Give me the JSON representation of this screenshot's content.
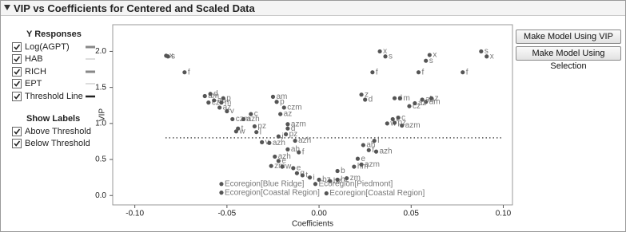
{
  "header": {
    "title": "VIP vs Coefficients for Centered and Scaled Data"
  },
  "y_responses": {
    "title": "Y Responses",
    "items": [
      "Log(AGPT)",
      "HAB",
      "RICH",
      "EPT",
      "Threshold Line"
    ]
  },
  "show_labels": {
    "title": "Show Labels",
    "items": [
      "Above Threshold",
      "Below Threshold"
    ]
  },
  "buttons": [
    "Make Model Using VIP",
    "Make Model Using Selection"
  ],
  "chart_data": {
    "type": "scatter",
    "x_label": "Coefficients",
    "y_label": "VIP",
    "xlim": [
      -0.112,
      0.105
    ],
    "ylim": [
      -0.13,
      2.37
    ],
    "xticks": [
      {
        "value": -0.1,
        "label": "-0.10"
      },
      {
        "value": -0.05,
        "label": "-0.05"
      },
      {
        "value": 0,
        "label": "0.00"
      },
      {
        "value": 0.05,
        "label": "0.05"
      },
      {
        "value": 0.1,
        "label": "0.10"
      }
    ],
    "yticks": [
      {
        "value": 0,
        "label": "0.0"
      },
      {
        "value": 0.5,
        "label": "0.5"
      },
      {
        "value": 1,
        "label": "1.0"
      },
      {
        "value": 1.5,
        "label": "1.5"
      },
      {
        "value": 2,
        "label": "2.0"
      }
    ],
    "threshold": 0.8,
    "color": "#555555",
    "x": [
      -0.083,
      -0.082,
      -0.073,
      -0.062,
      -0.059,
      -0.06,
      -0.057,
      -0.054,
      -0.052,
      -0.053,
      -0.05,
      -0.047,
      -0.041,
      -0.044,
      -0.045,
      -0.037,
      -0.035,
      -0.034,
      -0.031,
      -0.025,
      -0.023,
      -0.019,
      -0.021,
      -0.017,
      -0.017,
      -0.018,
      -0.022,
      -0.027,
      -0.013,
      -0.017,
      -0.011,
      -0.024,
      -0.022,
      -0.026,
      -0.02,
      -0.014,
      -0.012,
      -0.009,
      -0.005,
      0.0,
      0.006,
      0.01,
      0.015,
      0.019,
      0.023,
      0.01,
      -0.053,
      -0.053,
      -0.002,
      0.004,
      0.033,
      0.036,
      0.029,
      0.06,
      0.058,
      0.054,
      0.088,
      0.091,
      0.078,
      0.023,
      0.025,
      0.041,
      0.044,
      0.056,
      0.058,
      0.061,
      0.049,
      0.052,
      0.037,
      0.04,
      0.043,
      0.041,
      0.045,
      0.024,
      0.027,
      0.031,
      0.03,
      0.021
    ],
    "values": [
      1.94,
      1.93,
      1.71,
      1.38,
      1.41,
      1.29,
      1.32,
      1.22,
      1.35,
      1.29,
      1.17,
      1.06,
      1.06,
      0.93,
      0.89,
      1.13,
      0.96,
      0.88,
      0.74,
      1.37,
      1.3,
      1.22,
      1.13,
      0.99,
      0.93,
      0.85,
      0.82,
      0.73,
      0.76,
      0.64,
      0.6,
      0.54,
      0.48,
      0.41,
      0.4,
      0.38,
      0.31,
      0.28,
      0.25,
      0.22,
      0.2,
      0.22,
      0.24,
      0.4,
      0.43,
      0.34,
      0.16,
      0.04,
      0.16,
      0.03,
      2.0,
      1.93,
      1.71,
      1.95,
      1.87,
      1.71,
      2.0,
      1.93,
      1.71,
      1.4,
      1.33,
      1.35,
      1.35,
      1.33,
      1.3,
      1.35,
      1.24,
      1.28,
      1.0,
      1.06,
      1.08,
      1.01,
      0.97,
      0.7,
      0.63,
      0.61,
      0.76,
      0.51
    ],
    "labels": [
      "x",
      "s",
      "f",
      "am",
      "d",
      "cz",
      "ab",
      "az",
      "p",
      "m",
      "v",
      "czm",
      "azh",
      "t",
      "w",
      "c",
      "pz",
      "l",
      "v",
      "am",
      "p",
      "czm",
      "az",
      "azm",
      "d",
      "pz",
      "i",
      "azh",
      "azh",
      "ah",
      "f",
      "azh",
      "e",
      "zm",
      "w",
      "e",
      "q",
      "t",
      "i",
      "bz",
      "bz",
      "hz",
      "zm",
      "hm",
      "azm",
      "b",
      "Ecoregion[Blue Ridge]",
      "Ecoregion[Coastal Region]",
      "Ecoregion[Piedmont]",
      "Ecoregion[Coastal Region]",
      "x",
      "s",
      "f",
      "x",
      "s",
      "f",
      "s",
      "x",
      "f",
      "z",
      "d",
      "d",
      "m",
      "ab",
      "am",
      "z",
      "cz",
      "az",
      "w",
      "t",
      "c",
      "pz",
      "azm",
      "ah",
      "f",
      "azh",
      "i",
      "e"
    ]
  }
}
